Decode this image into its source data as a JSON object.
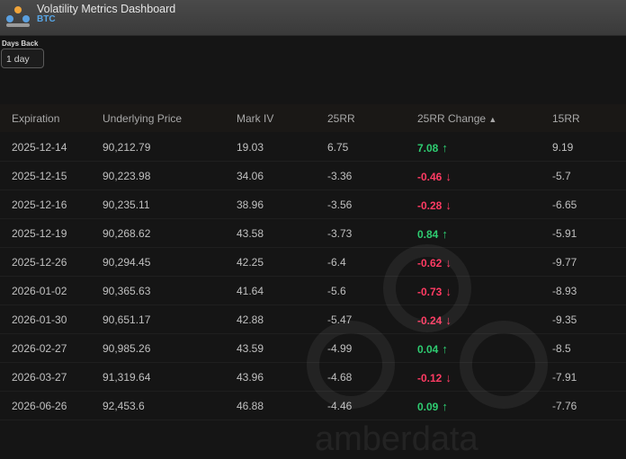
{
  "header": {
    "title": "Volatility Metrics Dashboard",
    "subtitle": "BTC",
    "logo_icon": "amberdata-logo"
  },
  "controls": {
    "days_back_label": "Days Back",
    "days_back_value": "1 day"
  },
  "table": {
    "columns": [
      "Expiration",
      "Underlying Price",
      "Mark IV",
      "25RR",
      "25RR Change",
      "15RR"
    ],
    "sort_indicator": "▲",
    "rows": [
      {
        "expiration": "2025-12-14",
        "price": "90,212.79",
        "mark_iv": "19.03",
        "rr25": "6.75",
        "rr25_change": "7.08",
        "direction": "up",
        "rr15": "9.19"
      },
      {
        "expiration": "2025-12-15",
        "price": "90,223.98",
        "mark_iv": "34.06",
        "rr25": "-3.36",
        "rr25_change": "-0.46",
        "direction": "down",
        "rr15": "-5.7"
      },
      {
        "expiration": "2025-12-16",
        "price": "90,235.11",
        "mark_iv": "38.96",
        "rr25": "-3.56",
        "rr25_change": "-0.28",
        "direction": "down",
        "rr15": "-6.65"
      },
      {
        "expiration": "2025-12-19",
        "price": "90,268.62",
        "mark_iv": "43.58",
        "rr25": "-3.73",
        "rr25_change": "0.84",
        "direction": "up",
        "rr15": "-5.91"
      },
      {
        "expiration": "2025-12-26",
        "price": "90,294.45",
        "mark_iv": "42.25",
        "rr25": "-6.4",
        "rr25_change": "-0.62",
        "direction": "down",
        "rr15": "-9.77"
      },
      {
        "expiration": "2026-01-02",
        "price": "90,365.63",
        "mark_iv": "41.64",
        "rr25": "-5.6",
        "rr25_change": "-0.73",
        "direction": "down",
        "rr15": "-8.93"
      },
      {
        "expiration": "2026-01-30",
        "price": "90,651.17",
        "mark_iv": "42.88",
        "rr25": "-5.47",
        "rr25_change": "-0.24",
        "direction": "down",
        "rr15": "-9.35"
      },
      {
        "expiration": "2026-02-27",
        "price": "90,985.26",
        "mark_iv": "43.59",
        "rr25": "-4.99",
        "rr25_change": "0.04",
        "direction": "up",
        "rr15": "-8.5"
      },
      {
        "expiration": "2026-03-27",
        "price": "91,319.64",
        "mark_iv": "43.96",
        "rr25": "-4.68",
        "rr25_change": "-0.12",
        "direction": "down",
        "rr15": "-7.91"
      },
      {
        "expiration": "2026-06-26",
        "price": "92,453.6",
        "mark_iv": "46.88",
        "rr25": "-4.46",
        "rr25_change": "0.09",
        "direction": "up",
        "rr15": "-7.76"
      }
    ]
  },
  "watermark_text": "amberdata",
  "colors": {
    "up": "#2ecc71",
    "down": "#ff3b63",
    "subtitle": "#58a6e6"
  }
}
